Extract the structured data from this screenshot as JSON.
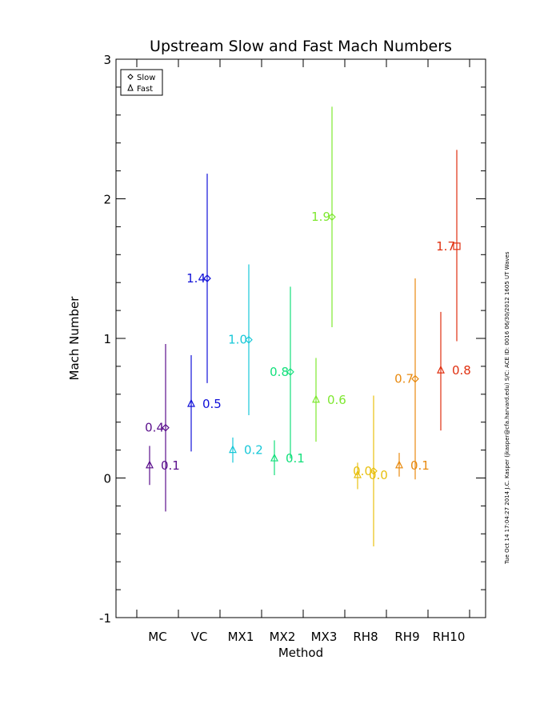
{
  "chart_data": {
    "type": "scatter",
    "title": "Upstream Slow and Fast Mach Numbers",
    "xlabel": "Method",
    "ylabel": "Mach Number",
    "ylim": [
      -1,
      3
    ],
    "yticks": [
      "-1",
      "0",
      "1",
      "2",
      "3"
    ],
    "categories": [
      "MC",
      "VC",
      "MX1",
      "MX2",
      "MX3",
      "RH8",
      "RH9",
      "RH10"
    ],
    "legend": {
      "placement": "top-left",
      "entries": [
        {
          "label": "Slow",
          "marker": "diamond"
        },
        {
          "label": "Fast",
          "marker": "triangle"
        }
      ]
    },
    "side_note": "Tue Oct 14 17:04:27 2014   J.C. Kasper (jkasper@cfa.harvard.edu)   S/C: ACE ID: 0016 06/30/2012  1605 UT Waves",
    "series": [
      {
        "name": "Slow",
        "marker": "diamond",
        "points": [
          {
            "category": "MC",
            "value": 0.36,
            "low": -0.24,
            "high": 0.96,
            "label": "0.4",
            "color": "#5a0f8c"
          },
          {
            "category": "VC",
            "value": 1.43,
            "low": 0.68,
            "high": 2.18,
            "label": "1.4",
            "color": "#1010d8"
          },
          {
            "category": "MX1",
            "value": 0.99,
            "low": 0.45,
            "high": 1.53,
            "label": "1.0",
            "color": "#18c8d8"
          },
          {
            "category": "MX2",
            "value": 0.76,
            "low": 0.14,
            "high": 1.37,
            "label": "0.8",
            "color": "#14e07c"
          },
          {
            "category": "MX3",
            "value": 1.87,
            "low": 1.08,
            "high": 2.66,
            "label": "1.9",
            "color": "#7ee830"
          },
          {
            "category": "RH8",
            "value": 0.05,
            "low": -0.49,
            "high": 0.59,
            "label": "0.0",
            "color": "#e8c010"
          },
          {
            "category": "RH9",
            "value": 0.71,
            "low": -0.01,
            "high": 1.43,
            "label": "0.7",
            "color": "#e88a10"
          },
          {
            "category": "RH10",
            "value": 1.66,
            "low": 0.98,
            "high": 2.35,
            "label": "1.7",
            "color": "#e03010",
            "marker": "square"
          }
        ]
      },
      {
        "name": "Fast",
        "marker": "triangle",
        "points": [
          {
            "category": "MC",
            "value": 0.09,
            "low": -0.05,
            "high": 0.23,
            "label": "0.1",
            "color": "#5a0f8c"
          },
          {
            "category": "VC",
            "value": 0.53,
            "low": 0.19,
            "high": 0.88,
            "label": "0.5",
            "color": "#1010d8"
          },
          {
            "category": "MX1",
            "value": 0.2,
            "low": 0.11,
            "high": 0.29,
            "label": "0.2",
            "color": "#18c8d8"
          },
          {
            "category": "MX2",
            "value": 0.14,
            "low": 0.02,
            "high": 0.27,
            "label": "0.1",
            "color": "#14e07c"
          },
          {
            "category": "MX3",
            "value": 0.56,
            "low": 0.26,
            "high": 0.86,
            "label": "0.6",
            "color": "#7ee830"
          },
          {
            "category": "RH8",
            "value": 0.02,
            "low": -0.08,
            "high": 0.11,
            "label": "0.0",
            "color": "#e8c010"
          },
          {
            "category": "RH9",
            "value": 0.09,
            "low": 0.01,
            "high": 0.18,
            "label": "0.1",
            "color": "#e88a10"
          },
          {
            "category": "RH10",
            "value": 0.77,
            "low": 0.34,
            "high": 1.19,
            "label": "0.8",
            "color": "#e03010"
          }
        ]
      }
    ]
  }
}
